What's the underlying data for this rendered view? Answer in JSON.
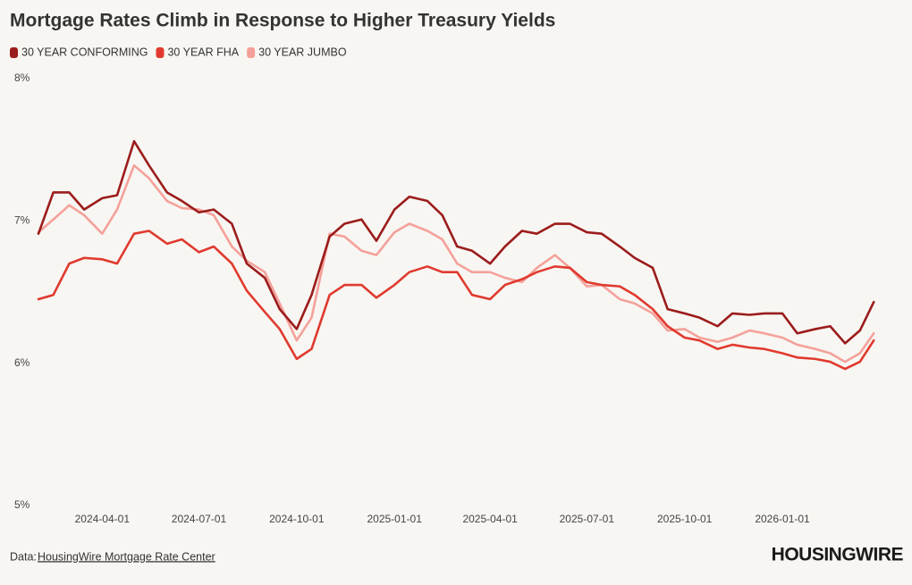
{
  "chart_data": {
    "type": "line",
    "title": "Mortgage Rates Climb in Response to Higher Treasury Yields",
    "x": [
      "2024-02-01",
      "2024-02-15",
      "2024-03-01",
      "2024-03-15",
      "2024-04-01",
      "2024-04-15",
      "2024-05-01",
      "2024-05-15",
      "2024-06-01",
      "2024-06-15",
      "2024-07-01",
      "2024-07-15",
      "2024-08-01",
      "2024-08-15",
      "2024-09-01",
      "2024-09-15",
      "2024-10-01",
      "2024-10-15",
      "2024-11-01",
      "2024-11-15",
      "2024-12-01",
      "2024-12-15",
      "2025-01-01",
      "2025-01-15",
      "2025-02-01",
      "2025-02-15",
      "2025-03-01",
      "2025-03-15",
      "2025-04-01",
      "2025-04-15",
      "2025-05-01",
      "2025-05-15",
      "2025-06-01",
      "2025-06-15",
      "2025-07-01",
      "2025-07-15",
      "2025-08-01",
      "2025-08-15",
      "2025-09-01",
      "2025-09-15",
      "2025-10-01",
      "2025-10-15",
      "2025-11-01",
      "2025-11-15",
      "2025-12-01",
      "2025-12-15",
      "2026-01-01",
      "2026-01-15",
      "2026-02-01",
      "2026-02-15",
      "2026-03-01",
      "2026-03-15",
      "2026-03-28"
    ],
    "series": [
      {
        "name": "30 YEAR CONFORMING",
        "color": "#9b1c1c",
        "values": [
          6.91,
          7.2,
          7.2,
          7.08,
          7.16,
          7.18,
          7.56,
          7.39,
          7.2,
          7.14,
          7.06,
          7.08,
          6.98,
          6.7,
          6.6,
          6.38,
          6.24,
          6.48,
          6.89,
          6.98,
          7.01,
          6.86,
          7.08,
          7.17,
          7.14,
          7.04,
          6.82,
          6.79,
          6.7,
          6.82,
          6.93,
          6.91,
          6.98,
          6.98,
          6.92,
          6.91,
          6.82,
          6.74,
          6.67,
          6.38,
          6.35,
          6.32,
          6.26,
          6.35,
          6.34,
          6.35,
          6.35,
          6.21,
          6.24,
          6.26,
          6.14,
          6.23,
          6.43
        ]
      },
      {
        "name": "30 YEAR FHA",
        "color": "#e03a2f",
        "values": [
          6.45,
          6.48,
          6.7,
          6.74,
          6.73,
          6.7,
          6.91,
          6.93,
          6.84,
          6.87,
          6.78,
          6.82,
          6.7,
          6.51,
          6.36,
          6.24,
          6.03,
          6.1,
          6.48,
          6.55,
          6.55,
          6.46,
          6.55,
          6.64,
          6.68,
          6.64,
          6.64,
          6.48,
          6.45,
          6.55,
          6.59,
          6.64,
          6.68,
          6.67,
          6.57,
          6.55,
          6.54,
          6.48,
          6.38,
          6.26,
          6.18,
          6.16,
          6.1,
          6.13,
          6.11,
          6.1,
          6.07,
          6.04,
          6.03,
          6.01,
          5.96,
          6.01,
          6.16
        ]
      },
      {
        "name": "30 YEAR JUMBO",
        "color": "#f4a19a",
        "values": [
          6.92,
          7.01,
          7.11,
          7.04,
          6.91,
          7.08,
          7.39,
          7.3,
          7.14,
          7.09,
          7.08,
          7.04,
          6.82,
          6.72,
          6.64,
          6.42,
          6.16,
          6.32,
          6.91,
          6.89,
          6.79,
          6.76,
          6.92,
          6.98,
          6.93,
          6.87,
          6.7,
          6.64,
          6.64,
          6.6,
          6.57,
          6.67,
          6.76,
          6.67,
          6.54,
          6.55,
          6.45,
          6.42,
          6.35,
          6.23,
          6.24,
          6.18,
          6.15,
          6.18,
          6.23,
          6.21,
          6.18,
          6.13,
          6.1,
          6.07,
          6.01,
          6.07,
          6.21
        ]
      }
    ],
    "xlim": [
      "2024-02-01",
      "2026-04-01"
    ],
    "xticks": [
      "2024-04-01",
      "2024-07-01",
      "2024-10-01",
      "2025-01-01",
      "2025-04-01",
      "2025-07-01",
      "2025-10-01",
      "2026-01-01"
    ],
    "ylim": [
      5,
      8
    ],
    "yticks": [
      {
        "value": 5,
        "label": "5%"
      },
      {
        "value": 6,
        "label": "6%"
      },
      {
        "value": 7,
        "label": "7%"
      },
      {
        "value": 8,
        "label": "8%"
      }
    ],
    "grid": false,
    "source_label": "Data:",
    "source": "HousingWire Mortgage Rate Center",
    "logo": "HOUSINGWIRE"
  }
}
